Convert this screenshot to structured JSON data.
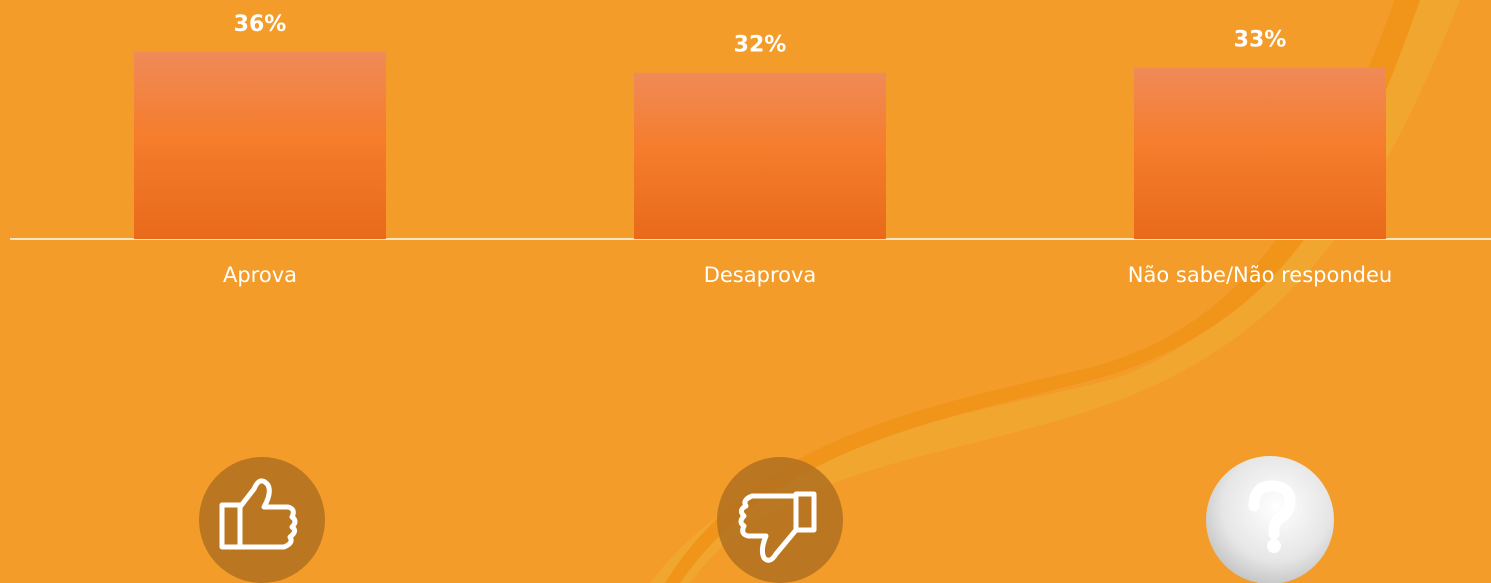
{
  "chart_data": {
    "type": "bar",
    "categories": [
      "Aprova",
      "Desaprova",
      "Não sabe/Não respondeu"
    ],
    "values": [
      36,
      32,
      33
    ],
    "value_labels": [
      "36%",
      "32%",
      "33%"
    ],
    "ylim": [
      0,
      46
    ]
  }
}
